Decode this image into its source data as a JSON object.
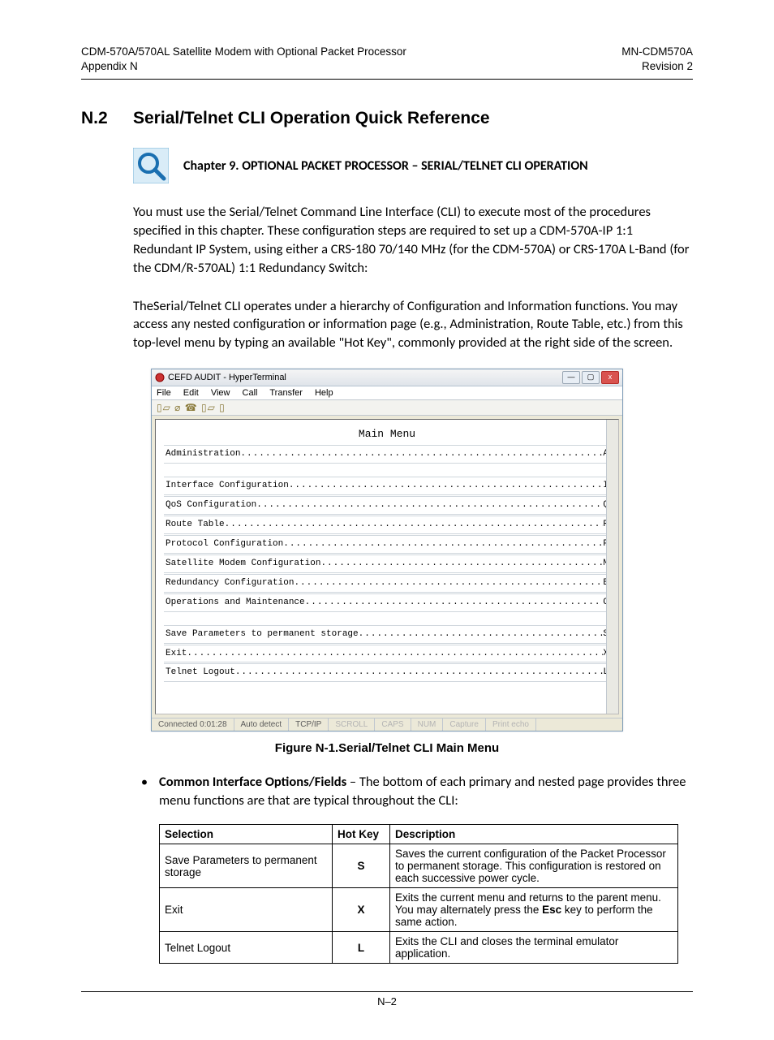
{
  "header": {
    "left_line1": "CDM-570A/570AL Satellite Modem with Optional Packet Processor",
    "left_line2": "Appendix N",
    "right_line1": "MN-CDM570A",
    "right_line2": "Revision 2"
  },
  "section": {
    "number": "N.2",
    "title": "Serial/Telnet CLI Operation Quick Reference"
  },
  "chapter": {
    "title": "Chapter 9. OPTIONAL PACKET PROCESSOR – SERIAL/TELNET CLI OPERATION"
  },
  "para1": "You must use the Serial/Telnet Command Line Interface (CLI) to execute most of the procedures specified in this chapter. These configuration steps are required to set up a CDM-570A-IP 1:1 Redundant IP System, using either a CRS-180 70/140 MHz (for the CDM-570A) or CRS-170A L-Band (for the CDM/R-570AL) 1:1 Redundancy Switch:",
  "para2": "TheSerial/Telnet CLI operates under a hierarchy of Configuration and Information functions. You may access any nested configuration or information page (e.g., Administration, Route Table, etc.) from this top-level menu by typing an available \"Hot Key\", commonly provided at the right side of the screen.",
  "hyperterm": {
    "title": "CEFD AUDIT - HyperTerminal",
    "menus": [
      "File",
      "Edit",
      "View",
      "Call",
      "Transfer",
      "Help"
    ],
    "main_menu_label": "Main Menu",
    "items": [
      {
        "label": "Administration",
        "hotkey": "A",
        "gap_after": true
      },
      {
        "label": "Interface Configuration",
        "hotkey": "I"
      },
      {
        "label": "QoS Configuration",
        "hotkey": "Q"
      },
      {
        "label": "Route Table",
        "hotkey": "R"
      },
      {
        "label": "Protocol Configuration",
        "hotkey": "P"
      },
      {
        "label": "Satellite Modem Configuration",
        "hotkey": "M"
      },
      {
        "label": "Redundancy Configuration",
        "hotkey": "E"
      },
      {
        "label": "Operations and Maintenance",
        "hotkey": "O",
        "gap_after": true
      },
      {
        "label": "Save Parameters to permanent storage",
        "hotkey": "S"
      },
      {
        "label": "Exit",
        "hotkey": "X"
      },
      {
        "label": "Telnet Logout",
        "hotkey": "L"
      }
    ],
    "status": {
      "connected": "Connected 0:01:28",
      "detect": "Auto detect",
      "proto": "TCP/IP",
      "scroll": "SCROLL",
      "caps": "CAPS",
      "num": "NUM",
      "capture": "Capture",
      "echo": "Print echo"
    }
  },
  "figure_caption": "Figure N-1.Serial/Telnet CLI Main Menu",
  "bullet": {
    "bold": "Common Interface Options/Fields",
    "rest": " – The bottom of each primary and nested page provides three menu functions are that are typical throughout the CLI:"
  },
  "table": {
    "headers": [
      "Selection",
      "Hot Key",
      "Description"
    ],
    "rows": [
      {
        "selection": "Save Parameters to permanent storage",
        "hotkey": "S",
        "description_pre": "Saves the current configuration of the Packet Processor to permanent storage. This configuration is restored on each successive power cycle.",
        "description_bold": "",
        "description_post": ""
      },
      {
        "selection": "Exit",
        "hotkey": "X",
        "description_pre": "Exits the current menu and returns to the parent menu. You may alternately press the ",
        "description_bold": "Esc",
        "description_post": " key to perform the same action."
      },
      {
        "selection": "Telnet Logout",
        "hotkey": "L",
        "description_pre": "Exits the CLI and closes the terminal emulator application.",
        "description_bold": "",
        "description_post": ""
      }
    ]
  },
  "footer": {
    "pagenum": "N–2"
  }
}
